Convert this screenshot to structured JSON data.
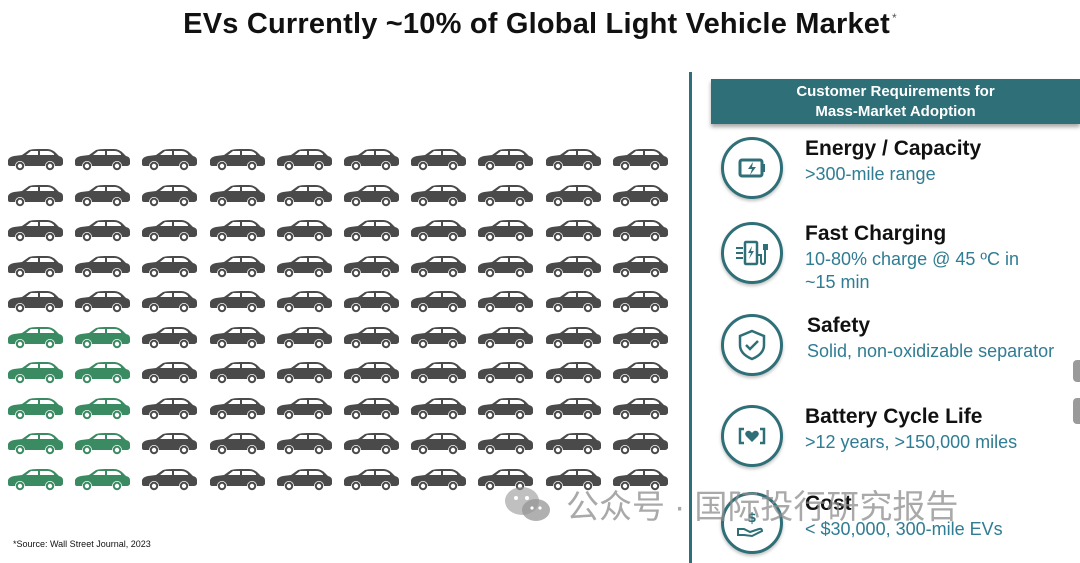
{
  "title": {
    "text": "EVs Currently ~10% of Global Light Vehicle Market",
    "footnote_mark": "*"
  },
  "car_grid": {
    "rows": 10,
    "columns": 10,
    "ev_share_percent": 10,
    "ev_color": "#3a8a62",
    "ice_color": "#4a4a4a"
  },
  "requirements": {
    "header_line1": "Customer Requirements for",
    "header_line2": "Mass-Market Adoption",
    "items": [
      {
        "title": "Energy / Capacity",
        "desc1": ">300-mile range",
        "desc2": "",
        "icon": "battery-charge-icon"
      },
      {
        "title": "Fast Charging",
        "desc1": "10-80% charge @ 45 ºC in",
        "desc2": "~15 min",
        "icon": "charging-station-icon"
      },
      {
        "title": "Safety",
        "desc1": "Solid, non-oxidizable separator",
        "desc2": "",
        "icon": "shield-check-icon"
      },
      {
        "title": "Battery Cycle Life",
        "desc1": ">12 years, >150,000 miles",
        "desc2": "",
        "icon": "battery-heart-icon"
      },
      {
        "title": "Cost",
        "desc1": "< $30,000, 300-mile EVs",
        "desc2": "",
        "icon": "money-hand-icon"
      }
    ]
  },
  "source": "*Source: Wall Street Journal, 2023",
  "watermark": "公众号 · 国际投行研究报告",
  "colors": {
    "accent": "#2f6f78",
    "desc_text": "#2f7c93"
  }
}
